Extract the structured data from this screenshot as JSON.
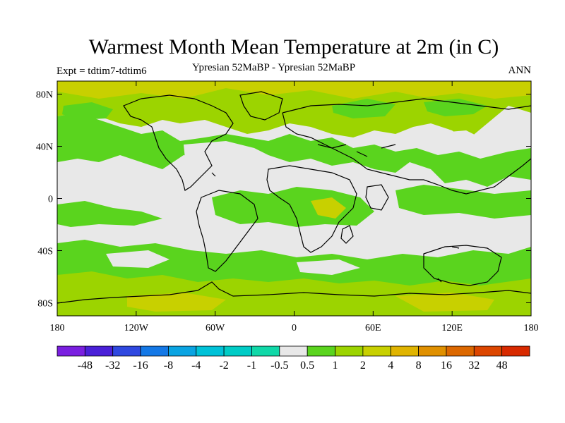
{
  "title": "Warmest Month Mean Temperature at 2m (in C)",
  "expt_label": "Expt = tdtim7-tdtim6",
  "subtitle": "Ypresian  52MaBP - Ypresian  52MaBP",
  "season": "ANN",
  "axes": {
    "lat_labels": [
      "80N",
      "40N",
      "0",
      "40S",
      "80S"
    ],
    "lat_values": [
      80,
      40,
      0,
      -40,
      -80
    ],
    "lon_labels": [
      "180",
      "120W",
      "60W",
      "0",
      "60E",
      "120E",
      "180"
    ],
    "lon_values": [
      -180,
      -120,
      -60,
      0,
      60,
      120,
      180
    ]
  },
  "colorbar": {
    "labels": [
      "-48",
      "-32",
      "-16",
      "-8",
      "-4",
      "-2",
      "-1",
      "-0.5",
      "0.5",
      "1",
      "2",
      "4",
      "8",
      "16",
      "32",
      "48"
    ],
    "colors": [
      "#7a1fe0",
      "#4a20d8",
      "#2f48e0",
      "#1478e6",
      "#0aa4e2",
      "#00c2d8",
      "#00ccc6",
      "#10d8a8",
      "#e8e8e8",
      "#5ad41e",
      "#9cd400",
      "#c8d000",
      "#e0b400",
      "#e09000",
      "#dc6800",
      "#dc4600",
      "#d82a00"
    ]
  },
  "map": {
    "background_color": "#e8e8e8",
    "field_colors": {
      "light_green": "#5ad41e",
      "yellow_green": "#9cd400",
      "olive": "#c8d000"
    }
  }
}
